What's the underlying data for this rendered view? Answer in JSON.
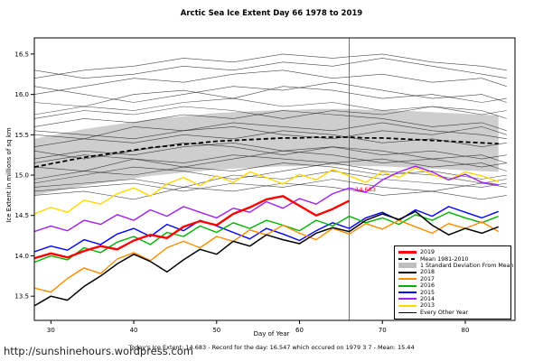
{
  "page": {
    "title": "Arctic Sea Ice Extent Day 66 1978 to 2019",
    "xlabel": "Day of Year",
    "ylabel": "Ice Extent in millions of sq km",
    "footer_note": "Today's Ice Extent: 14.683  - Record for the day: 16.547 which occured on 1979 3 7  - Mean: 15.44",
    "watermark": "http://sunshinehours.wordpress.com",
    "annotation": {
      "label": "14.683",
      "day": 66.4,
      "value": 14.8,
      "color": "#FF0000"
    }
  },
  "chart_data": {
    "type": "line",
    "title": "Arctic Sea Ice Extent Day 66 1978 to 2019",
    "xlabel": "Day of Year",
    "ylabel": "Ice Extent in millions of sq km",
    "xlim": [
      28,
      86
    ],
    "ylim": [
      13.2,
      16.7
    ],
    "xticks": [
      30,
      40,
      50,
      60,
      70,
      80
    ],
    "yticks": [
      13.5,
      14.0,
      14.5,
      15.0,
      15.5,
      16.0,
      16.5
    ],
    "grid": false,
    "legend_position": "bottom-right",
    "vline_day": 66,
    "x": [
      28,
      30,
      32,
      34,
      36,
      38,
      40,
      42,
      44,
      46,
      48,
      50,
      52,
      54,
      56,
      58,
      60,
      62,
      64,
      66,
      68,
      70,
      72,
      74,
      76,
      78,
      80,
      82,
      84
    ],
    "mean_series": {
      "name": "Mean 1981-2010",
      "color": "#000000",
      "std": 0.35,
      "band_color": "#BEBEBE",
      "values": [
        15.1,
        15.14,
        15.18,
        15.22,
        15.25,
        15.28,
        15.31,
        15.34,
        15.36,
        15.38,
        15.4,
        15.42,
        15.43,
        15.44,
        15.45,
        15.46,
        15.46,
        15.47,
        15.47,
        15.47,
        15.46,
        15.46,
        15.45,
        15.44,
        15.43,
        15.42,
        15.41,
        15.4,
        15.39
      ]
    },
    "series": [
      {
        "name": "2013",
        "color": "#FFD800",
        "width": 1.4,
        "values": [
          14.52,
          14.6,
          14.54,
          14.69,
          14.64,
          14.77,
          14.84,
          14.74,
          14.89,
          14.97,
          14.87,
          14.99,
          14.91,
          15.04,
          14.97,
          14.89,
          15.01,
          14.94,
          15.07,
          14.99,
          14.91,
          15.04,
          14.97,
          15.09,
          15.01,
          14.94,
          15.04,
          14.99,
          14.92
        ]
      },
      {
        "name": "2014",
        "color": "#A020F0",
        "width": 1.4,
        "values": [
          14.3,
          14.37,
          14.31,
          14.44,
          14.39,
          14.51,
          14.44,
          14.57,
          14.49,
          14.61,
          14.54,
          14.47,
          14.59,
          14.54,
          14.67,
          14.59,
          14.71,
          14.64,
          14.77,
          14.84,
          14.79,
          14.94,
          15.04,
          15.11,
          15.04,
          14.94,
          15.01,
          14.91,
          14.88
        ]
      },
      {
        "name": "2015",
        "color": "#0000FF",
        "width": 1.4,
        "values": [
          14.05,
          14.12,
          14.07,
          14.2,
          14.14,
          14.27,
          14.34,
          14.24,
          14.39,
          14.31,
          14.44,
          14.37,
          14.29,
          14.21,
          14.34,
          14.27,
          14.19,
          14.31,
          14.41,
          14.34,
          14.47,
          14.54,
          14.44,
          14.57,
          14.49,
          14.61,
          14.54,
          14.47,
          14.55
        ]
      },
      {
        "name": "2016",
        "color": "#00B200",
        "width": 1.4,
        "values": [
          13.92,
          14.0,
          13.95,
          14.1,
          14.04,
          14.17,
          14.24,
          14.14,
          14.29,
          14.24,
          14.37,
          14.29,
          14.41,
          14.34,
          14.44,
          14.38,
          14.31,
          14.44,
          14.37,
          14.49,
          14.41,
          14.47,
          14.39,
          14.51,
          14.44,
          14.54,
          14.47,
          14.41,
          14.49
        ]
      },
      {
        "name": "2017",
        "color": "#FF8C00",
        "width": 1.4,
        "values": [
          13.6,
          13.55,
          13.72,
          13.85,
          13.78,
          13.96,
          14.04,
          13.94,
          14.1,
          14.18,
          14.1,
          14.24,
          14.18,
          14.32,
          14.26,
          14.38,
          14.28,
          14.2,
          14.34,
          14.27,
          14.4,
          14.33,
          14.44,
          14.36,
          14.28,
          14.4,
          14.34,
          14.42,
          14.3
        ]
      },
      {
        "name": "2018",
        "color": "#000000",
        "width": 1.5,
        "values": [
          13.38,
          13.5,
          13.45,
          13.62,
          13.75,
          13.9,
          14.02,
          13.93,
          13.8,
          13.95,
          14.08,
          14.02,
          14.18,
          14.12,
          14.26,
          14.2,
          14.15,
          14.28,
          14.35,
          14.3,
          14.44,
          14.52,
          14.45,
          14.55,
          14.38,
          14.26,
          14.34,
          14.28,
          14.36
        ]
      },
      {
        "name": "2019",
        "color": "#FF0000",
        "width": 2.4,
        "values": [
          13.97,
          14.03,
          13.98,
          14.06,
          14.12,
          14.08,
          14.19,
          14.26,
          14.22,
          14.36,
          14.43,
          14.38,
          14.52,
          14.6,
          14.7,
          14.74,
          14.62,
          14.5,
          14.58,
          14.683
        ]
      }
    ],
    "other_years": {
      "name": "Every Other Year",
      "color": "#1a1a1a",
      "x_coarse": [
        28,
        34,
        40,
        46,
        52,
        58,
        64,
        70,
        76,
        82,
        85
      ],
      "lines": [
        [
          16.2,
          16.3,
          16.35,
          16.45,
          16.4,
          16.5,
          16.45,
          16.5,
          16.4,
          16.35,
          16.3
        ],
        [
          16.0,
          16.1,
          16.2,
          16.15,
          16.25,
          16.3,
          16.2,
          16.25,
          16.15,
          16.2,
          16.1
        ],
        [
          15.9,
          15.85,
          16.0,
          16.05,
          15.95,
          16.1,
          16.05,
          15.95,
          16.0,
          15.9,
          15.95
        ],
        [
          15.75,
          15.85,
          15.8,
          15.9,
          15.95,
          15.85,
          15.9,
          15.8,
          15.85,
          15.75,
          15.8
        ],
        [
          15.6,
          15.7,
          15.65,
          15.75,
          15.7,
          15.8,
          15.75,
          15.7,
          15.6,
          15.65,
          15.55
        ],
        [
          15.5,
          15.45,
          15.6,
          15.55,
          15.65,
          15.6,
          15.55,
          15.65,
          15.55,
          15.5,
          15.45
        ],
        [
          15.35,
          15.45,
          15.4,
          15.5,
          15.45,
          15.55,
          15.5,
          15.4,
          15.45,
          15.35,
          15.4
        ],
        [
          15.2,
          15.3,
          15.25,
          15.35,
          15.4,
          15.3,
          15.35,
          15.25,
          15.3,
          15.2,
          15.25
        ],
        [
          15.1,
          15.05,
          15.2,
          15.15,
          15.25,
          15.2,
          15.15,
          15.2,
          15.1,
          15.15,
          15.05
        ],
        [
          14.95,
          15.05,
          15.0,
          15.1,
          15.05,
          15.15,
          15.1,
          15.0,
          15.05,
          14.95,
          15.0
        ],
        [
          14.85,
          14.9,
          14.95,
          14.85,
          15.0,
          14.95,
          15.05,
          14.95,
          14.9,
          14.85,
          14.9
        ],
        [
          14.75,
          14.8,
          14.7,
          14.85,
          14.8,
          14.9,
          14.85,
          14.75,
          14.8,
          14.7,
          14.75
        ],
        [
          15.55,
          15.5,
          15.45,
          15.55,
          15.6,
          15.5,
          15.45,
          15.55,
          15.5,
          15.6,
          15.5
        ],
        [
          16.1,
          16.0,
          15.9,
          16.0,
          16.1,
          16.05,
          16.15,
          16.05,
          15.95,
          16.0,
          15.9
        ],
        [
          14.9,
          15.0,
          15.1,
          15.05,
          14.95,
          15.05,
          15.15,
          15.05,
          15.0,
          14.9,
          14.95
        ],
        [
          15.3,
          15.2,
          15.3,
          15.4,
          15.35,
          15.25,
          15.35,
          15.3,
          15.2,
          15.25,
          15.15
        ],
        [
          15.7,
          15.8,
          15.75,
          15.85,
          15.8,
          15.7,
          15.8,
          15.75,
          15.85,
          15.8,
          15.7
        ],
        [
          15.15,
          15.25,
          15.2,
          15.1,
          15.2,
          15.3,
          15.25,
          15.15,
          15.2,
          15.1,
          15.15
        ],
        [
          16.3,
          16.2,
          16.25,
          16.35,
          16.3,
          16.4,
          16.35,
          16.45,
          16.35,
          16.25,
          16.2
        ],
        [
          14.8,
          14.85,
          14.9,
          14.8,
          14.9,
          14.85,
          14.95,
          14.85,
          14.8,
          14.9,
          14.85
        ]
      ]
    },
    "legend": {
      "entries": [
        {
          "label": "2019",
          "color": "#FF0000",
          "style": "thick"
        },
        {
          "label": "Mean 1981-2010",
          "color": "#000000",
          "style": "dashed"
        },
        {
          "label": "1 Standard Deviation From Mean",
          "color": "#BEBEBE",
          "style": "band"
        },
        {
          "label": "2018",
          "color": "#000000",
          "style": "line"
        },
        {
          "label": "2017",
          "color": "#FF8C00",
          "style": "line"
        },
        {
          "label": "2016",
          "color": "#00B200",
          "style": "line"
        },
        {
          "label": "2015",
          "color": "#0000FF",
          "style": "line"
        },
        {
          "label": "2014",
          "color": "#A020F0",
          "style": "line"
        },
        {
          "label": "2013",
          "color": "#FFD800",
          "style": "line"
        },
        {
          "label": "Every Other Year",
          "color": "#000000",
          "style": "thin"
        }
      ]
    }
  }
}
